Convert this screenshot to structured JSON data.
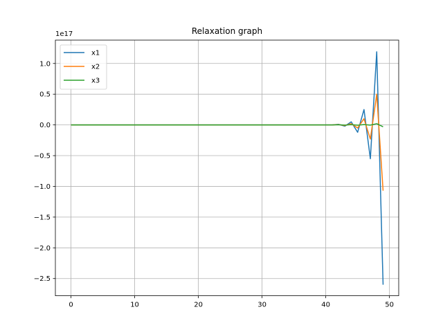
{
  "chart_data": {
    "type": "line",
    "title": "Relaxation graph",
    "xlabel": "",
    "ylabel": "",
    "y_offset_label": "1e17",
    "y_scale": 1e+17,
    "xlim": [
      -2.45,
      51.45
    ],
    "ylim": [
      -2.78,
      1.38
    ],
    "grid": true,
    "legend_position": "upper left",
    "x_ticks": [
      0,
      10,
      20,
      30,
      40,
      50
    ],
    "x_tick_labels": [
      "0",
      "10",
      "20",
      "30",
      "40",
      "50"
    ],
    "y_ticks": [
      1.0,
      0.5,
      0.0,
      -0.5,
      -1.0,
      -1.5,
      -2.0,
      -2.5
    ],
    "y_tick_labels": [
      "1.0",
      "0.5",
      "0.0",
      "−0.5",
      "−1.0",
      "−1.5",
      "−2.0",
      "−2.5"
    ],
    "x": [
      0,
      1,
      2,
      3,
      4,
      5,
      6,
      7,
      8,
      9,
      10,
      11,
      12,
      13,
      14,
      15,
      16,
      17,
      18,
      19,
      20,
      21,
      22,
      23,
      24,
      25,
      26,
      27,
      28,
      29,
      30,
      31,
      32,
      33,
      34,
      35,
      36,
      37,
      38,
      39,
      40,
      41,
      42,
      43,
      44,
      45,
      46,
      47,
      48,
      49
    ],
    "series": [
      {
        "name": "x1",
        "color": "#1f77b4",
        "values": [
          0,
          0,
          0,
          0,
          0,
          0,
          0,
          0,
          0,
          0,
          0,
          0,
          0,
          0,
          0,
          0,
          0,
          0,
          0,
          0,
          0,
          0,
          0,
          0,
          0,
          0,
          0,
          0,
          0,
          0,
          0,
          0,
          0,
          0,
          0,
          0,
          0,
          0,
          0,
          0,
          0,
          0,
          0.01,
          -0.02,
          0.05,
          -0.12,
          0.25,
          -0.55,
          1.19,
          -2.6
        ]
      },
      {
        "name": "x2",
        "color": "#ff7f0e",
        "values": [
          0,
          0,
          0,
          0,
          0,
          0,
          0,
          0,
          0,
          0,
          0,
          0,
          0,
          0,
          0,
          0,
          0,
          0,
          0,
          0,
          0,
          0,
          0,
          0,
          0,
          0,
          0,
          0,
          0,
          0,
          0,
          0,
          0,
          0,
          0,
          0,
          0,
          0,
          0,
          0,
          0,
          0,
          0.005,
          -0.01,
          0.02,
          -0.05,
          0.1,
          -0.23,
          0.5,
          -1.07
        ]
      },
      {
        "name": "x3",
        "color": "#2ca02c",
        "values": [
          0,
          0,
          0,
          0,
          0,
          0,
          0,
          0,
          0,
          0,
          0,
          0,
          0,
          0,
          0,
          0,
          0,
          0,
          0,
          0,
          0,
          0,
          0,
          0,
          0,
          0,
          0,
          0,
          0,
          0,
          0,
          0,
          0,
          0,
          0,
          0,
          0,
          0,
          0,
          0,
          0,
          0,
          0.002,
          -0.003,
          0.004,
          -0.004,
          0.005,
          -0.003,
          0.02,
          -0.03
        ]
      }
    ]
  }
}
